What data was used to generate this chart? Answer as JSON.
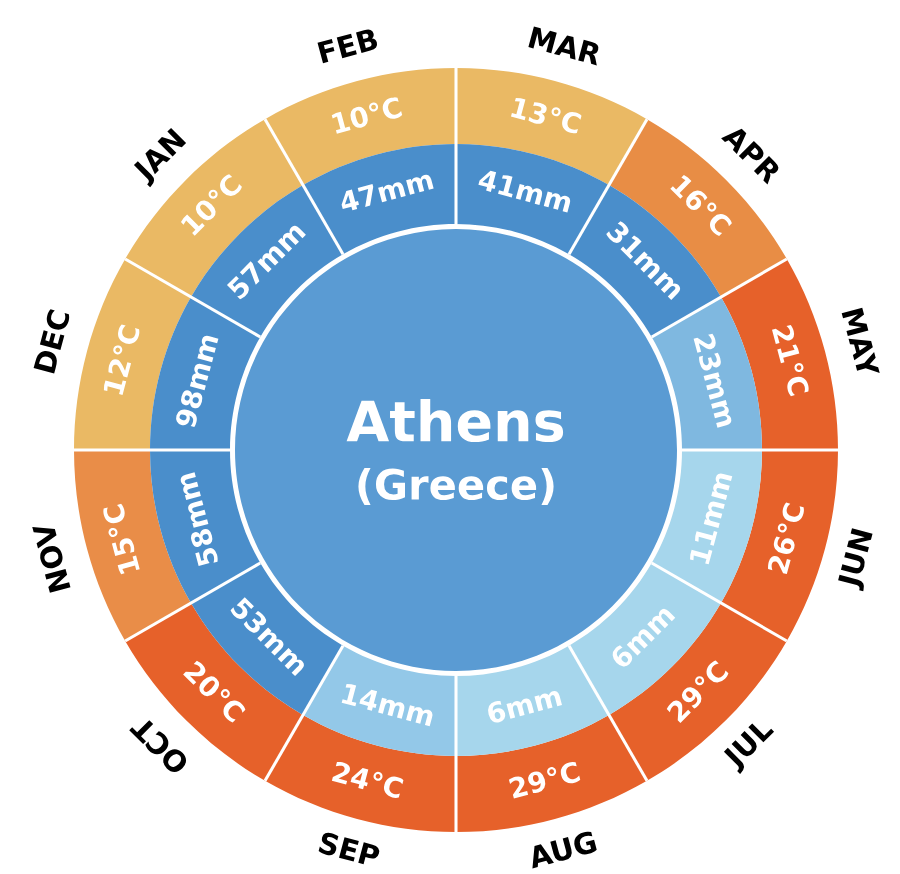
{
  "chart_data": {
    "type": "other",
    "title": "Athens",
    "subtitle": "(Greece)",
    "categories": [
      "JAN",
      "FEB",
      "MAR",
      "APR",
      "MAY",
      "JUN",
      "JUL",
      "AUG",
      "SEP",
      "OCT",
      "NOV",
      "DEC"
    ],
    "series": [
      {
        "values": [
          10,
          10,
          13,
          16,
          21,
          26,
          29,
          29,
          24,
          20,
          15,
          12
        ],
        "value_labels": [
          "10°C",
          "10°C",
          "13°C",
          "16°C",
          "21°C",
          "26°C",
          "29°C",
          "29°C",
          "24°C",
          "20°C",
          "15°C",
          "12°C"
        ],
        "colors": [
          "#eab964",
          "#eab964",
          "#eab964",
          "#e88d45",
          "#e6612a",
          "#e6612a",
          "#e6612a",
          "#e6612a",
          "#e6612a",
          "#e6612a",
          "#e98d48",
          "#eab964"
        ]
      },
      {
        "values": [
          57,
          47,
          41,
          31,
          23,
          11,
          6,
          6,
          14,
          53,
          58,
          98
        ],
        "value_labels": [
          "57mm",
          "47mm",
          "41mm",
          "31mm",
          "23mm",
          "11mm",
          "6mm",
          "6mm",
          "14mm",
          "53mm",
          "58mm",
          "98mm"
        ],
        "colors": [
          "#4a8ecb",
          "#4a8ecb",
          "#4a8ecb",
          "#4a8ecb",
          "#7fb8e0",
          "#a6d6ec",
          "#a6d6ec",
          "#a6d6ec",
          "#93c8e8",
          "#4a8ecb",
          "#4a8ecb",
          "#4a8ecb"
        ]
      }
    ]
  }
}
